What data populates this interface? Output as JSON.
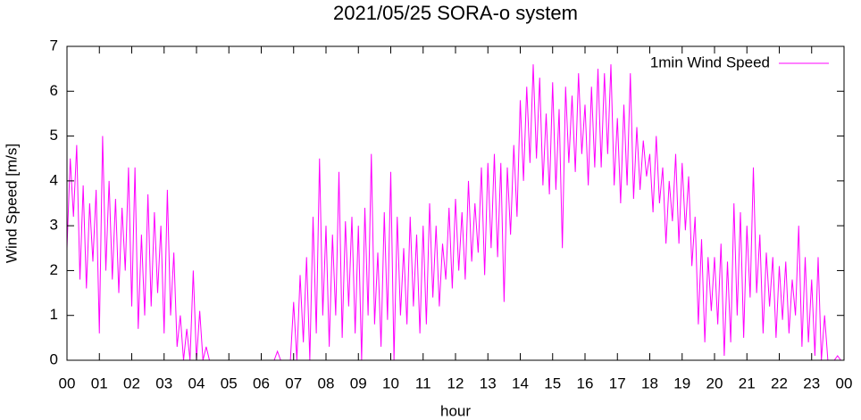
{
  "chart_data": {
    "type": "line",
    "title": "2021/05/25 SORA-o system",
    "xlabel": "hour",
    "ylabel": "Wind Speed [m/s]",
    "x": [
      0,
      0.1,
      0.2,
      0.3,
      0.4,
      0.5,
      0.6,
      0.7,
      0.8,
      0.9,
      1,
      1.1,
      1.2,
      1.3,
      1.4,
      1.5,
      1.6,
      1.7,
      1.8,
      1.9,
      2,
      2.1,
      2.2,
      2.3,
      2.4,
      2.5,
      2.6,
      2.7,
      2.8,
      2.9,
      3,
      3.1,
      3.2,
      3.3,
      3.4,
      3.5,
      3.6,
      3.7,
      3.8,
      3.9,
      4,
      4.1,
      4.2,
      4.3,
      4.4,
      4.5,
      4.6,
      4.7,
      4.8,
      4.9,
      5,
      5.1,
      5.2,
      5.3,
      5.4,
      5.5,
      5.6,
      5.7,
      5.8,
      5.9,
      6,
      6.1,
      6.2,
      6.3,
      6.4,
      6.5,
      6.6,
      6.7,
      6.8,
      6.9,
      7,
      7.1,
      7.2,
      7.3,
      7.4,
      7.5,
      7.6,
      7.7,
      7.8,
      7.9,
      8,
      8.1,
      8.2,
      8.3,
      8.4,
      8.5,
      8.6,
      8.7,
      8.8,
      8.9,
      9,
      9.1,
      9.2,
      9.3,
      9.4,
      9.5,
      9.6,
      9.7,
      9.8,
      9.9,
      10,
      10.1,
      10.2,
      10.3,
      10.4,
      10.5,
      10.6,
      10.7,
      10.8,
      10.9,
      11,
      11.1,
      11.2,
      11.3,
      11.4,
      11.5,
      11.6,
      11.7,
      11.8,
      11.9,
      12,
      12.1,
      12.2,
      12.3,
      12.4,
      12.5,
      12.6,
      12.7,
      12.8,
      12.9,
      13,
      13.1,
      13.2,
      13.3,
      13.4,
      13.5,
      13.6,
      13.7,
      13.8,
      13.9,
      14,
      14.1,
      14.2,
      14.3,
      14.4,
      14.5,
      14.6,
      14.7,
      14.8,
      14.9,
      15,
      15.1,
      15.2,
      15.3,
      15.4,
      15.5,
      15.6,
      15.7,
      15.8,
      15.9,
      16,
      16.1,
      16.2,
      16.3,
      16.4,
      16.5,
      16.6,
      16.7,
      16.8,
      16.9,
      17,
      17.1,
      17.2,
      17.3,
      17.4,
      17.5,
      17.6,
      17.7,
      17.8,
      17.9,
      18,
      18.1,
      18.2,
      18.3,
      18.4,
      18.5,
      18.6,
      18.7,
      18.8,
      18.9,
      19,
      19.1,
      19.2,
      19.3,
      19.4,
      19.5,
      19.6,
      19.7,
      19.8,
      19.9,
      20,
      20.1,
      20.2,
      20.3,
      20.4,
      20.5,
      20.6,
      20.7,
      20.8,
      20.9,
      21,
      21.1,
      21.2,
      21.3,
      21.4,
      21.5,
      21.6,
      21.7,
      21.8,
      21.9,
      22,
      22.1,
      22.2,
      22.3,
      22.4,
      22.5,
      22.6,
      22.7,
      22.8,
      22.9,
      23,
      23.1,
      23.2,
      23.3,
      23.4,
      23.5,
      23.6,
      23.7,
      23.8,
      23.9
    ],
    "series": [
      {
        "name": "1min Wind Speed",
        "color": "#ff00ff",
        "values": [
          2.5,
          4.5,
          3.2,
          4.8,
          1.8,
          3.9,
          1.6,
          3.5,
          2.2,
          3.8,
          0.6,
          5.0,
          2.0,
          4.0,
          1.8,
          3.6,
          1.5,
          3.4,
          2.0,
          4.3,
          1.2,
          4.3,
          0.7,
          2.8,
          1.0,
          3.7,
          1.2,
          3.3,
          1.5,
          3.0,
          0.6,
          3.8,
          1.0,
          2.4,
          0.3,
          1.0,
          0,
          0.7,
          0,
          2.0,
          0,
          1.1,
          0,
          0.3,
          0,
          0,
          0,
          0,
          0,
          0,
          0,
          0,
          0,
          0,
          0,
          0,
          0,
          0,
          0,
          0,
          0,
          0,
          0,
          0,
          0,
          0.2,
          0,
          0,
          0,
          0,
          1.3,
          0,
          1.9,
          0.4,
          2.3,
          0,
          3.2,
          0.6,
          4.5,
          1.0,
          3.0,
          0.3,
          2.8,
          1.0,
          4.2,
          0.5,
          3.1,
          1.2,
          3.2,
          0.6,
          3.0,
          0,
          3.4,
          1.0,
          4.6,
          0.8,
          2.4,
          0.3,
          3.3,
          0.9,
          4.2,
          0,
          3.2,
          1.0,
          2.5,
          0.8,
          3.2,
          1.2,
          2.8,
          0.6,
          3.0,
          0.8,
          3.5,
          1.4,
          3.0,
          1.2,
          2.6,
          1.8,
          3.4,
          1.6,
          3.6,
          2.0,
          3.3,
          1.8,
          4.0,
          2.2,
          3.5,
          2.4,
          4.3,
          1.9,
          4.4,
          2.5,
          4.6,
          2.3,
          4.4,
          1.3,
          4.3,
          2.8,
          4.8,
          3.2,
          5.8,
          4.0,
          6.1,
          4.4,
          6.6,
          4.5,
          6.3,
          3.9,
          5.5,
          3.7,
          6.2,
          3.8,
          5.6,
          2.5,
          6.1,
          4.4,
          5.9,
          4.2,
          6.4,
          4.6,
          5.7,
          3.9,
          6.1,
          4.3,
          6.5,
          4.3,
          6.4,
          4.6,
          6.6,
          3.9,
          5.4,
          3.5,
          5.7,
          3.9,
          6.4,
          3.6,
          5.2,
          3.8,
          4.9,
          4.1,
          4.6,
          3.3,
          5.0,
          3.5,
          4.3,
          2.6,
          4.0,
          3.1,
          4.6,
          2.6,
          4.4,
          2.9,
          4.1,
          2.1,
          3.2,
          0.8,
          2.7,
          0.4,
          2.3,
          1.1,
          2.3,
          0.8,
          2.6,
          0.1,
          2.2,
          0.4,
          3.5,
          1.0,
          3.3,
          0.5,
          3.0,
          1.4,
          4.3,
          1.5,
          2.8,
          0.6,
          2.4,
          1.2,
          2.3,
          0.5,
          2.1,
          0.9,
          2.2,
          0.6,
          1.8,
          1.0,
          3.0,
          0.3,
          2.3,
          0.4,
          1.8,
          0.1,
          2.3,
          0,
          1.0,
          0,
          0,
          0,
          0.1,
          0
        ]
      }
    ],
    "xlim": [
      0,
      24
    ],
    "xticks": [
      {
        "value": 0,
        "label": "00"
      },
      {
        "value": 1,
        "label": "01"
      },
      {
        "value": 2,
        "label": "02"
      },
      {
        "value": 3,
        "label": "03"
      },
      {
        "value": 4,
        "label": "04"
      },
      {
        "value": 5,
        "label": "05"
      },
      {
        "value": 6,
        "label": "06"
      },
      {
        "value": 7,
        "label": "07"
      },
      {
        "value": 8,
        "label": "08"
      },
      {
        "value": 9,
        "label": "09"
      },
      10,
      11,
      12,
      13,
      14,
      15,
      16,
      17,
      18,
      19,
      20,
      21,
      22,
      23,
      {
        "value": 24,
        "label": "00"
      }
    ],
    "ylim": [
      0,
      7
    ],
    "yticks": [
      0,
      1,
      2,
      3,
      4,
      5,
      6,
      7
    ],
    "legend": "top-right"
  }
}
